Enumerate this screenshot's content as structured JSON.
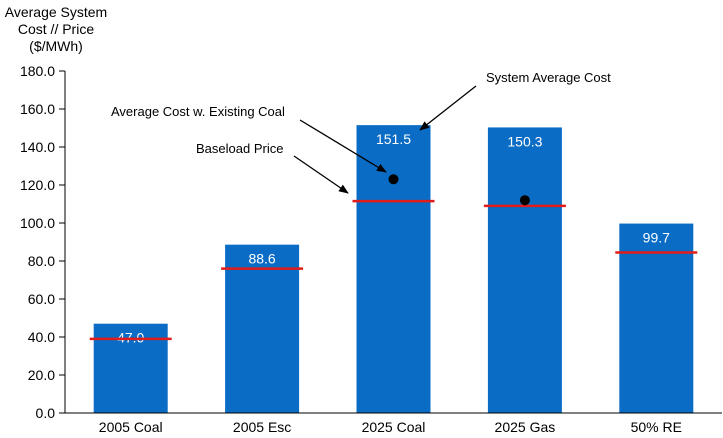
{
  "chart_data": {
    "type": "bar",
    "ylabel": [
      "Average System",
      "Cost // Price",
      "($/MWh)"
    ],
    "ylim": [
      0,
      180
    ],
    "yticks": [
      "0.0",
      "20.0",
      "40.0",
      "60.0",
      "80.0",
      "100.0",
      "120.0",
      "140.0",
      "160.0",
      "180.0"
    ],
    "grid": false,
    "categories": [
      "2005 Coal",
      "2005 Esc",
      "2025 Coal",
      "2025 Gas",
      "50% RE"
    ],
    "series": [
      {
        "values": [
          47.0,
          88.6,
          151.5,
          150.3,
          99.7
        ],
        "value_labels": [
          "47.0",
          "88.6",
          "151.5",
          "150.3",
          "99.7"
        ],
        "color": "#0a6cc4"
      },
      {
        "values": [
          39.0,
          76.0,
          111.5,
          109.0,
          84.5
        ],
        "color": "#e21b1b",
        "marker": "line"
      },
      {
        "values": [
          null,
          null,
          123.0,
          null,
          null
        ],
        "color": "#000000",
        "marker": "dot",
        "category_index": 2
      },
      {
        "values": [
          null,
          null,
          null,
          112.0,
          null
        ],
        "color": "#000000",
        "marker": "dot",
        "category_index": 3
      }
    ],
    "annotations": [
      {
        "text": "System Average Cost"
      },
      {
        "text": "Average Cost w. Existing Coal"
      },
      {
        "text": "Baseload Price"
      }
    ]
  }
}
